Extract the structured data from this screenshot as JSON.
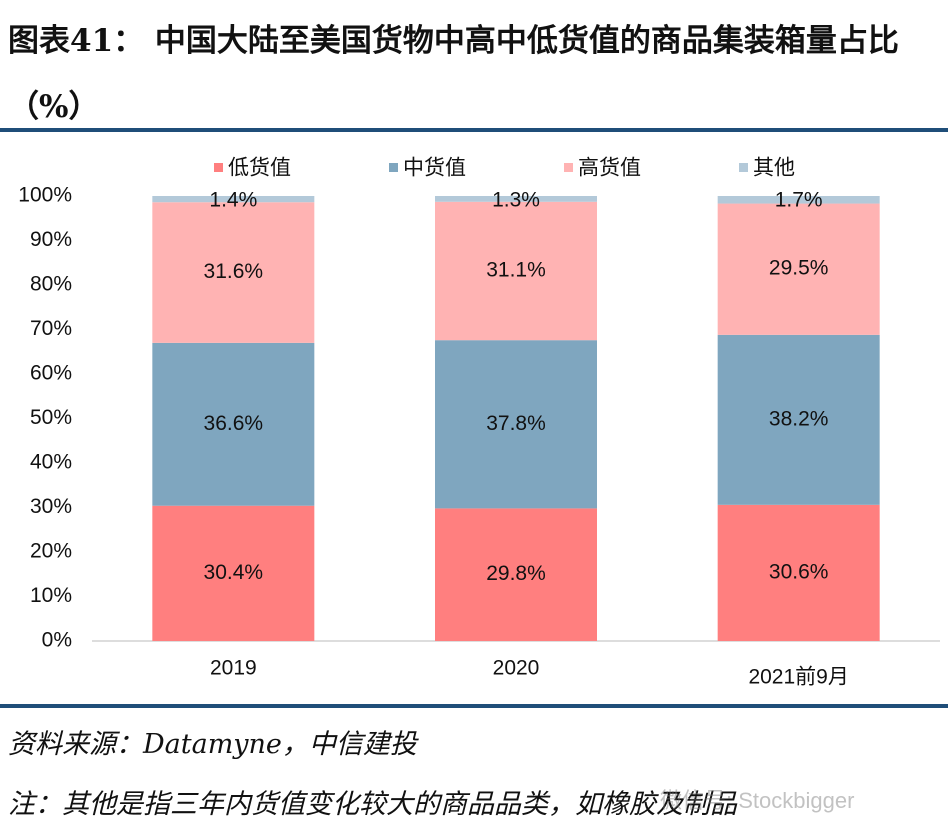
{
  "chart_data": {
    "type": "stacked_bar",
    "title": "图表41： 中国大陆至美国货物中高中低货值的商品集装箱量占比（%）",
    "categories": [
      "2019",
      "2020",
      "2021前9月"
    ],
    "series": [
      {
        "name": "低货值",
        "color": "#ff7f7f",
        "values": [
          30.4,
          29.8,
          30.6
        ],
        "value_labels": [
          "30.4%",
          "29.8%",
          "30.6%"
        ]
      },
      {
        "name": "中货值",
        "color": "#7fa6bf",
        "values": [
          36.6,
          37.8,
          38.2
        ],
        "value_labels": [
          "36.6%",
          "37.8%",
          "38.2%"
        ]
      },
      {
        "name": "高货值",
        "color": "#ffb3b3",
        "values": [
          31.6,
          31.1,
          29.5
        ],
        "value_labels": [
          "31.6%",
          "31.1%",
          "29.5%"
        ]
      },
      {
        "name": "其他",
        "color": "#b3c9d9",
        "values": [
          1.4,
          1.3,
          1.7
        ],
        "value_labels": [
          "1.4%",
          "1.3%",
          "1.7%"
        ]
      }
    ],
    "ylim": [
      0,
      100
    ],
    "yticks": [
      {
        "value": 0,
        "label": "0%"
      },
      {
        "value": 10,
        "label": "10%"
      },
      {
        "value": 20,
        "label": "20%"
      },
      {
        "value": 30,
        "label": "30%"
      },
      {
        "value": 40,
        "label": "40%"
      },
      {
        "value": 50,
        "label": "50%"
      },
      {
        "value": 60,
        "label": "60%"
      },
      {
        "value": 70,
        "label": "70%"
      },
      {
        "value": 80,
        "label": "80%"
      },
      {
        "value": 90,
        "label": "90%"
      },
      {
        "value": 100,
        "label": "100%"
      }
    ],
    "legend": "top",
    "source": "资料来源：Datamyne，中信建投",
    "note": "注：其他是指三年内货值变化较大的商品品类，如橡胶及制品",
    "watermark": "微信号: Stockbigger"
  }
}
